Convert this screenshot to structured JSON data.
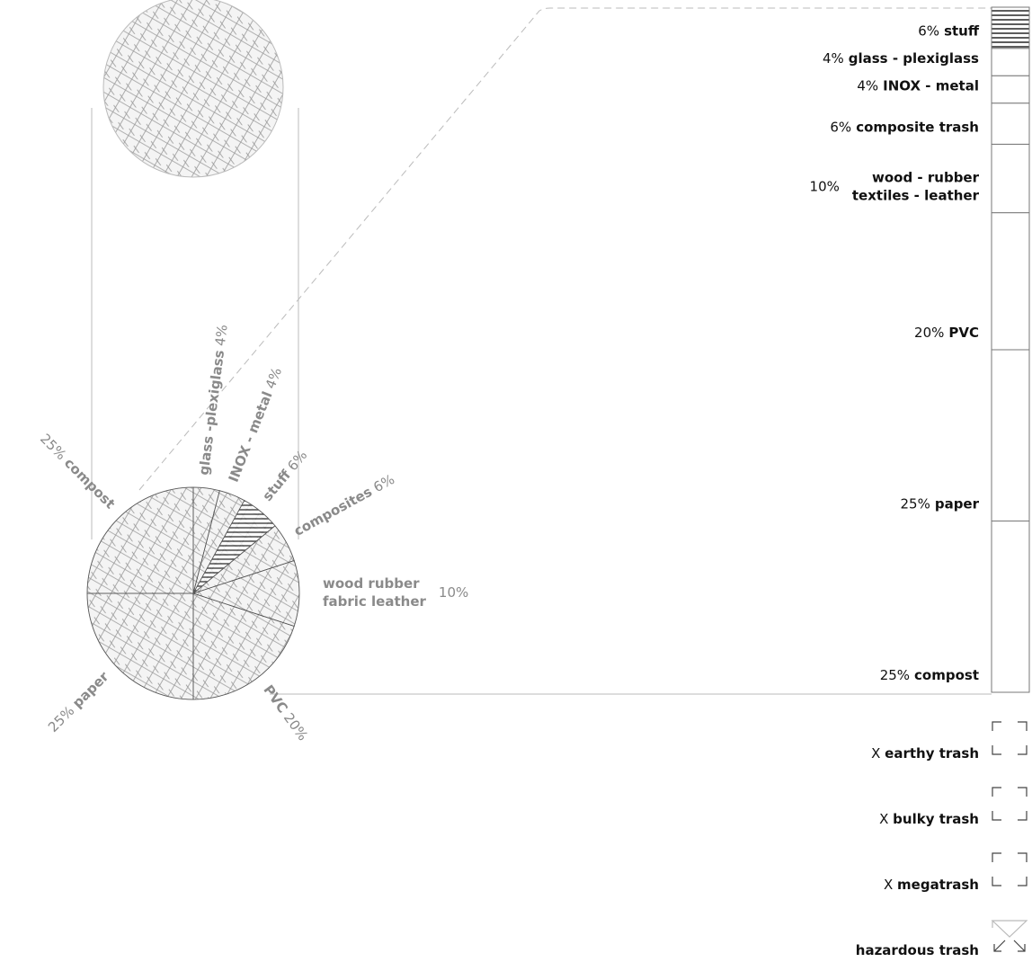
{
  "chart_data": [
    {
      "type": "pie",
      "labels": [
        [
          "paper"
        ],
        [
          "compost"
        ],
        [
          "glass -plexiglass"
        ],
        [
          "INOX - metal"
        ],
        [
          "stuff"
        ],
        [
          "composites"
        ],
        [
          "wood rubber",
          "fabric leather"
        ],
        [
          "PVC"
        ]
      ],
      "values": [
        25,
        25,
        4,
        4,
        6,
        6,
        10,
        20
      ],
      "value_labels": [
        "25%",
        "25%",
        "4%",
        "4%",
        "6%",
        "6%",
        "10%",
        "20%"
      ],
      "hatched": "stuff"
    },
    {
      "type": "stacked-bar",
      "categories": [
        [
          "compost"
        ],
        [
          "paper"
        ],
        [
          "PVC"
        ],
        [
          "wood - rubber",
          "textiles - leather"
        ],
        [
          "composite trash"
        ],
        [
          "INOX - metal"
        ],
        [
          "glass - plexiglass"
        ],
        [
          "stuff"
        ]
      ],
      "values": [
        25,
        25,
        20,
        10,
        6,
        4,
        4,
        6
      ],
      "value_labels": [
        "25%",
        "25%",
        "20%",
        "10%",
        "6%",
        "4%",
        "4%",
        "6%"
      ],
      "hatched": "stuff"
    }
  ],
  "extras": [
    {
      "prefix": "X",
      "name": "earthy trash"
    },
    {
      "prefix": "X",
      "name": "bulky trash"
    },
    {
      "prefix": "X",
      "name": "megatrash"
    },
    {
      "name": "hazardous trash"
    }
  ]
}
